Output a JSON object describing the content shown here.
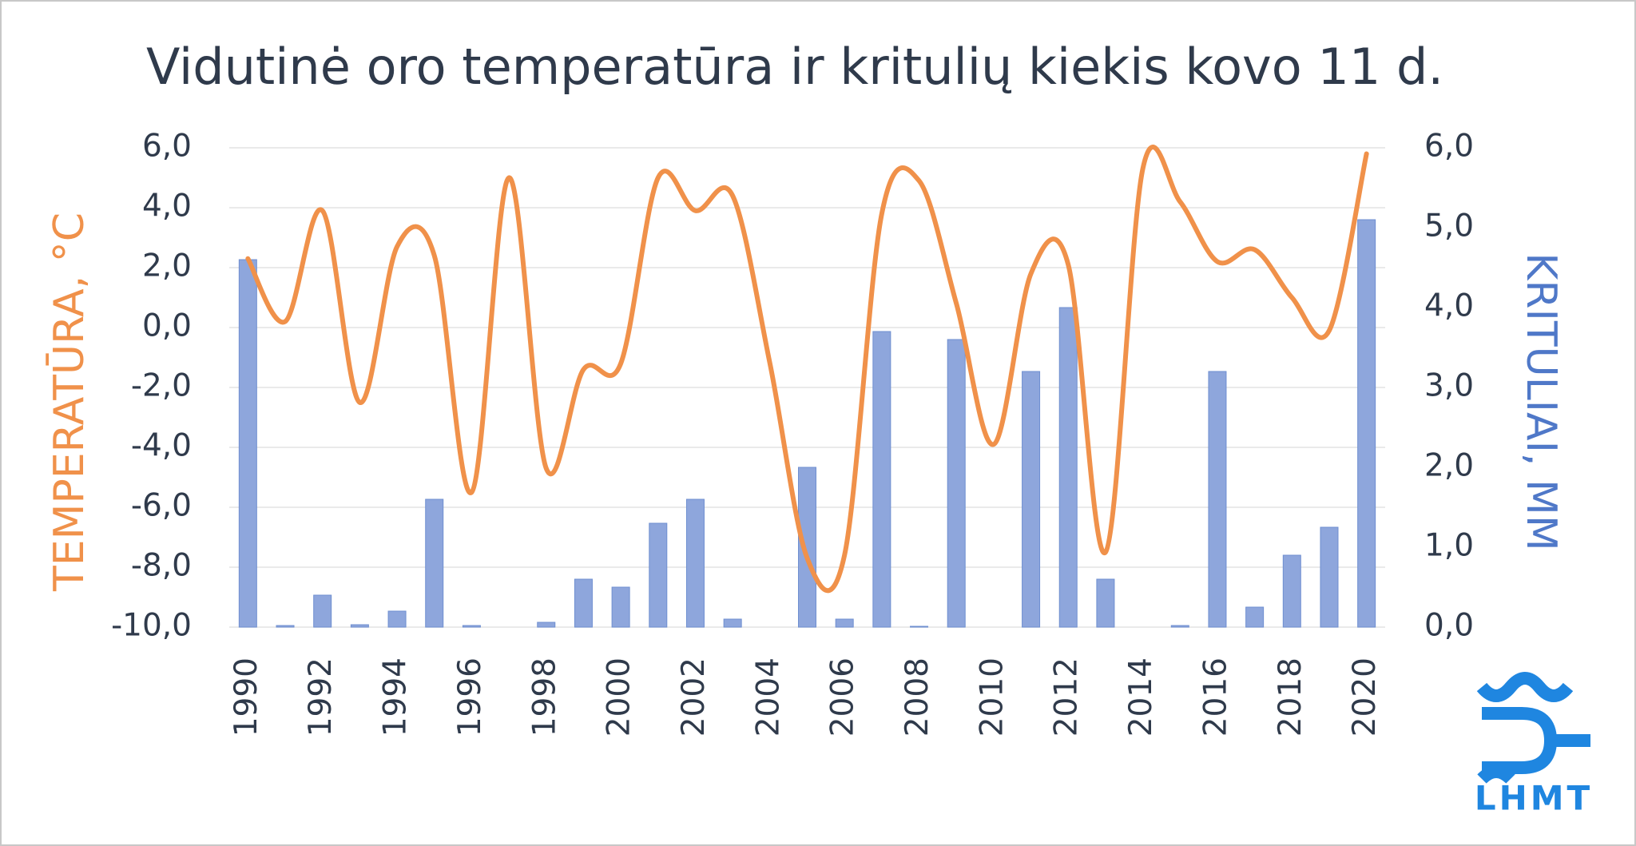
{
  "chart_data": {
    "type": "combo",
    "title": "Vidutinė oro temperatūra ir kritulių kiekis kovo 11 d.",
    "ylabel": "TEMPERATŪRA, °C",
    "y2label": "KRITULIAI, MM",
    "categories": [
      "1990",
      null,
      "1992",
      null,
      "1994",
      null,
      "1996",
      null,
      "1998",
      null,
      "2000",
      null,
      "2002",
      null,
      "2004",
      null,
      "2006",
      null,
      "2008",
      null,
      "2010",
      null,
      "2012",
      null,
      "2014",
      null,
      "2016",
      null,
      "2018",
      null,
      "2020"
    ],
    "series": [
      {
        "type": "bar",
        "axis": "y2",
        "color": "#8ea6dc",
        "values": [
          4.6,
          0.02,
          0.4,
          0.03,
          0.2,
          1.6,
          0.02,
          0,
          0.06,
          0.6,
          0.5,
          1.3,
          1.6,
          0.1,
          0,
          2.0,
          0.1,
          3.7,
          0.01,
          3.6,
          0,
          3.2,
          4.0,
          0.6,
          0,
          0.02,
          3.2,
          0.25,
          0.9,
          1.25,
          5.1
        ]
      },
      {
        "type": "line",
        "color": "#f0914a",
        "values": [
          2.3,
          0.2,
          3.9,
          -2.5,
          2.7,
          2.4,
          -5.5,
          5.0,
          -4.7,
          -1.4,
          -1.2,
          5.0,
          3.9,
          4.4,
          -1.2,
          -7.7,
          -7.6,
          3.8,
          4.9,
          0.8,
          -3.9,
          1.8,
          2.1,
          -7.5,
          5.3,
          4.2,
          2.2,
          2.6,
          1.0,
          -0.1,
          5.8
        ]
      }
    ],
    "ylim": [
      -10,
      6
    ],
    "yticks": [
      {
        "value": -10,
        "label": "-10,0"
      },
      {
        "value": -8,
        "label": "-8,0"
      },
      {
        "value": -6,
        "label": "-6,0"
      },
      {
        "value": -4,
        "label": "-4,0"
      },
      {
        "value": -2,
        "label": "-2,0"
      },
      {
        "value": 0,
        "label": "0,0"
      },
      {
        "value": 2,
        "label": "2,0"
      },
      {
        "value": 4,
        "label": "4,0"
      },
      {
        "value": 6,
        "label": "6,0"
      }
    ],
    "y2lim": [
      0,
      6
    ],
    "y2ticks": [
      {
        "value": 0,
        "label": "0,0"
      },
      {
        "value": 1,
        "label": "1,0"
      },
      {
        "value": 2,
        "label": "2,0"
      },
      {
        "value": 3,
        "label": "3,0"
      },
      {
        "value": 4,
        "label": "4,0"
      },
      {
        "value": 5,
        "label": "5,0"
      },
      {
        "value": 6,
        "label": "6,0"
      }
    ],
    "grid": true,
    "logo": "LHMT"
  }
}
